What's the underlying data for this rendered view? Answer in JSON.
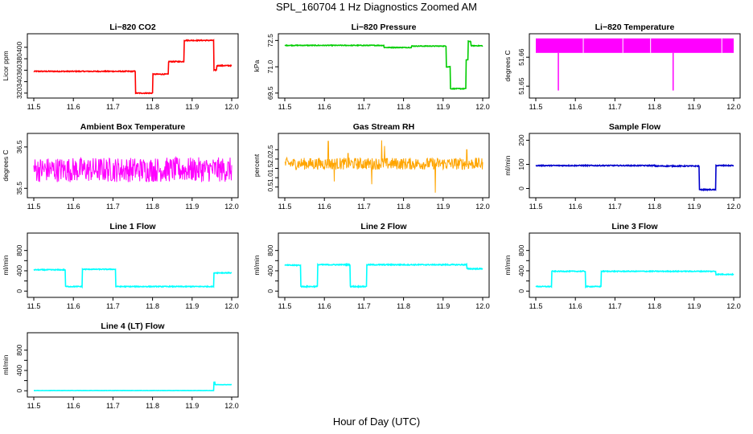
{
  "figure": {
    "title": "SPL_160704  1 Hz Diagnostics Zoomed AM",
    "xlabel": "Hour of Day (UTC)"
  },
  "chart_data": [
    {
      "type": "line",
      "title": "Li−820 CO2",
      "ylabel": "Licor ppm",
      "color": "#ff0000",
      "xlim": [
        11.5,
        12.0
      ],
      "ylim": [
        317,
        418
      ],
      "xticks": [
        11.5,
        11.6,
        11.7,
        11.8,
        11.9,
        12.0
      ],
      "xtick_labels": [
        "11.5",
        "11.6",
        "11.7",
        "11.8",
        "11.9",
        "12.0"
      ],
      "yticks": [
        320,
        340,
        360,
        380,
        400
      ],
      "ytick_labels": [
        "320",
        "340",
        "360",
        "380",
        "400"
      ],
      "style": "step",
      "noise": 0.8,
      "steps": [
        [
          11.5,
          11.757,
          358
        ],
        [
          11.757,
          11.8,
          320
        ],
        [
          11.8,
          11.84,
          353
        ],
        [
          11.84,
          11.88,
          375
        ],
        [
          11.88,
          11.955,
          412
        ],
        [
          11.955,
          11.962,
          360
        ],
        [
          11.962,
          12.0,
          368
        ]
      ]
    },
    {
      "type": "line",
      "title": "Li−820 Pressure",
      "ylabel": "kPa",
      "color": "#00cc00",
      "xlim": [
        11.5,
        12.0
      ],
      "ylim": [
        69.4,
        72.7
      ],
      "xticks": [
        11.5,
        11.6,
        11.7,
        11.8,
        11.9,
        12.0
      ],
      "xtick_labels": [
        "11.5",
        "11.6",
        "11.7",
        "11.8",
        "11.9",
        "12.0"
      ],
      "yticks": [
        69.5,
        71.0,
        72.5
      ],
      "ytick_labels": [
        "69.5",
        "71.0",
        "72.5"
      ],
      "style": "step",
      "noise": 0.02,
      "steps": [
        [
          11.5,
          11.75,
          72.22
        ],
        [
          11.75,
          11.82,
          72.1
        ],
        [
          11.82,
          11.908,
          72.18
        ],
        [
          11.908,
          11.918,
          71.0
        ],
        [
          11.918,
          11.958,
          69.75
        ],
        [
          11.958,
          11.963,
          71.4
        ],
        [
          11.963,
          11.97,
          72.45
        ],
        [
          11.97,
          12.0,
          72.2
        ]
      ]
    },
    {
      "type": "area",
      "title": "Li−820 Temperature",
      "ylabel": "degrees C",
      "color": "#ff00ff",
      "xlim": [
        11.5,
        12.0
      ],
      "ylim": [
        51.647,
        51.667
      ],
      "xticks": [
        11.5,
        11.6,
        11.7,
        11.8,
        11.9,
        12.0
      ],
      "xtick_labels": [
        "11.5",
        "11.6",
        "11.7",
        "11.8",
        "11.9",
        "12.0"
      ],
      "yticks": [
        51.65,
        51.66
      ],
      "ytick_labels": [
        "51.65",
        "51.66"
      ],
      "band": [
        51.6615,
        51.6665
      ],
      "dips": [
        [
          11.557,
          51.6485
        ],
        [
          11.847,
          51.6485
        ]
      ],
      "white_lines": [
        11.62,
        11.72,
        11.79,
        11.97
      ]
    },
    {
      "type": "line",
      "title": "Ambient Box Temperature",
      "ylabel": "degrees C",
      "color": "#ff00ff",
      "xlim": [
        11.5,
        12.0
      ],
      "ylim": [
        35.35,
        36.75
      ],
      "xticks": [
        11.5,
        11.6,
        11.7,
        11.8,
        11.9,
        12.0
      ],
      "xtick_labels": [
        "11.5",
        "11.6",
        "11.7",
        "11.8",
        "11.9",
        "12.0"
      ],
      "yticks": [
        35.5,
        36.5
      ],
      "ytick_labels": [
        "35.5",
        "36.5"
      ],
      "style": "noise",
      "center": 35.95,
      "amplitude": 0.3
    },
    {
      "type": "line",
      "title": "Gas Stream RH",
      "ylabel": "percent",
      "color": "#ffa500",
      "xlim": [
        11.5,
        12.0
      ],
      "ylim": [
        0.1,
        3.2
      ],
      "xticks": [
        11.5,
        11.6,
        11.7,
        11.8,
        11.9,
        12.0
      ],
      "xtick_labels": [
        "11.5",
        "11.6",
        "11.7",
        "11.8",
        "11.9",
        "12.0"
      ],
      "yticks": [
        0.5,
        1.0,
        1.5,
        2.0,
        2.5
      ],
      "ytick_labels": [
        "0.5",
        "1.0",
        "1.5",
        "2.0",
        "2.5"
      ],
      "style": "noise",
      "center": 1.75,
      "amplitude": 0.32,
      "spikes": [
        [
          11.61,
          2.95
        ],
        [
          11.745,
          3.0
        ],
        [
          11.752,
          2.7
        ],
        [
          11.88,
          0.2
        ],
        [
          11.625,
          0.8
        ],
        [
          11.96,
          2.5
        ],
        [
          11.66,
          2.3
        ],
        [
          11.72,
          0.65
        ]
      ]
    },
    {
      "type": "line",
      "title": "Sample Flow",
      "ylabel": "ml/min",
      "color": "#0000cc",
      "xlim": [
        11.5,
        12.0
      ],
      "ylim": [
        -25,
        215
      ],
      "xticks": [
        11.5,
        11.6,
        11.7,
        11.8,
        11.9,
        12.0
      ],
      "xtick_labels": [
        "11.5",
        "11.6",
        "11.7",
        "11.8",
        "11.9",
        "12.0"
      ],
      "yticks": [
        0,
        100,
        200
      ],
      "ytick_labels": [
        "0",
        "100",
        "200"
      ],
      "style": "step",
      "noise": 2,
      "steps": [
        [
          11.5,
          11.8,
          95
        ],
        [
          11.8,
          11.913,
          93
        ],
        [
          11.913,
          11.955,
          -5
        ],
        [
          11.955,
          12.0,
          95
        ]
      ]
    },
    {
      "type": "line",
      "title": "Line 1 Flow",
      "ylabel": "ml/min",
      "color": "#00ffff",
      "xlim": [
        11.5,
        12.0
      ],
      "ylim": [
        -60,
        1080
      ],
      "xticks": [
        11.5,
        11.6,
        11.7,
        11.8,
        11.9,
        12.0
      ],
      "xtick_labels": [
        "11.5",
        "11.6",
        "11.7",
        "11.8",
        "11.9",
        "12.0"
      ],
      "yticks": [
        0,
        200,
        400,
        600,
        800
      ],
      "ytick_labels": [
        "0",
        "400",
        "800"
      ],
      "style": "step",
      "noise": 8,
      "steps": [
        [
          11.5,
          11.58,
          420
        ],
        [
          11.58,
          11.622,
          90
        ],
        [
          11.622,
          11.707,
          430
        ],
        [
          11.707,
          11.955,
          90
        ],
        [
          11.955,
          12.0,
          360
        ]
      ]
    },
    {
      "type": "line",
      "title": "Line 2 Flow",
      "ylabel": "ml/min",
      "color": "#00ffff",
      "xlim": [
        11.5,
        12.0
      ],
      "ylim": [
        -60,
        1080
      ],
      "xticks": [
        11.5,
        11.6,
        11.7,
        11.8,
        11.9,
        12.0
      ],
      "xtick_labels": [
        "11.5",
        "11.6",
        "11.7",
        "11.8",
        "11.9",
        "12.0"
      ],
      "yticks": [
        0,
        200,
        400,
        600,
        800
      ],
      "ytick_labels": [
        "0",
        "400",
        "800"
      ],
      "style": "step",
      "noise": 10,
      "steps": [
        [
          11.5,
          11.54,
          510
        ],
        [
          11.54,
          11.583,
          90
        ],
        [
          11.583,
          11.665,
          520
        ],
        [
          11.665,
          11.707,
          90
        ],
        [
          11.707,
          11.96,
          520
        ],
        [
          11.96,
          12.0,
          440
        ]
      ]
    },
    {
      "type": "line",
      "title": "Line 3 Flow",
      "ylabel": "ml/min",
      "color": "#00ffff",
      "xlim": [
        11.5,
        12.0
      ],
      "ylim": [
        -60,
        1080
      ],
      "xticks": [
        11.5,
        11.6,
        11.7,
        11.8,
        11.9,
        12.0
      ],
      "xtick_labels": [
        "11.5",
        "11.6",
        "11.7",
        "11.8",
        "11.9",
        "12.0"
      ],
      "yticks": [
        0,
        200,
        400,
        600,
        800
      ],
      "ytick_labels": [
        "0",
        "400",
        "800"
      ],
      "style": "step",
      "noise": 8,
      "steps": [
        [
          11.5,
          11.54,
          90
        ],
        [
          11.54,
          11.625,
          390
        ],
        [
          11.625,
          11.665,
          90
        ],
        [
          11.665,
          11.955,
          390
        ],
        [
          11.955,
          12.0,
          330
        ]
      ]
    },
    {
      "type": "line",
      "title": "Line 4 (LT) Flow",
      "ylabel": "ml/min",
      "color": "#00ffff",
      "xlim": [
        11.5,
        12.0
      ],
      "ylim": [
        -60,
        1080
      ],
      "xticks": [
        11.5,
        11.6,
        11.7,
        11.8,
        11.9,
        12.0
      ],
      "xtick_labels": [
        "11.5",
        "11.6",
        "11.7",
        "11.8",
        "11.9",
        "12.0"
      ],
      "yticks": [
        0,
        200,
        400,
        600,
        800
      ],
      "ytick_labels": [
        "0",
        "400",
        "800"
      ],
      "style": "step",
      "noise": 2,
      "steps": [
        [
          11.5,
          11.955,
          5
        ],
        [
          11.955,
          11.958,
          170
        ],
        [
          11.958,
          12.0,
          120
        ]
      ]
    }
  ]
}
